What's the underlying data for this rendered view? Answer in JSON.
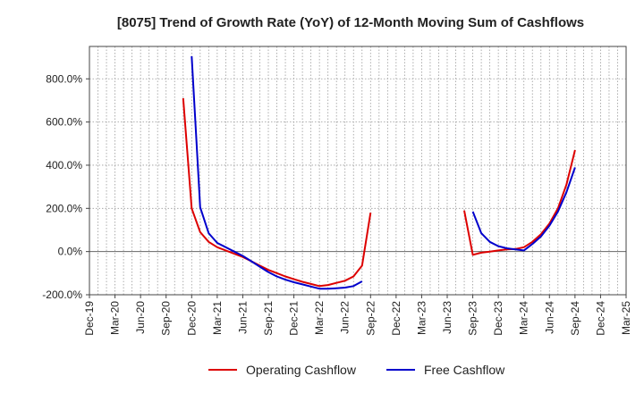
{
  "chart_data": {
    "type": "line",
    "title": "[8075]  Trend of Growth Rate (YoY) of 12-Month Moving Sum of Cashflows",
    "xlabel": "",
    "ylabel": "",
    "ylim": [
      -200,
      950
    ],
    "grid": true,
    "legend_position": "bottom",
    "x_tick_labels": [
      "Dec-19",
      "Mar-20",
      "Jun-20",
      "Sep-20",
      "Dec-20",
      "Mar-21",
      "Jun-21",
      "Sep-21",
      "Dec-21",
      "Mar-22",
      "Jun-22",
      "Sep-22",
      "Dec-22",
      "Mar-23",
      "Jun-23",
      "Sep-23",
      "Dec-23",
      "Mar-24",
      "Jun-24",
      "Sep-24",
      "Dec-24",
      "Mar-25"
    ],
    "y_ticks": [
      {
        "value": 800,
        "label": "800.0%"
      },
      {
        "value": 600,
        "label": "600.0%"
      },
      {
        "value": 400,
        "label": "400.0%"
      },
      {
        "value": 200,
        "label": "200.0%"
      },
      {
        "value": 0,
        "label": "0.0%"
      },
      {
        "value": -200,
        "label": "-200.0%"
      }
    ],
    "series": [
      {
        "name": "Operating Cashflow",
        "color": "#dd0000",
        "segments": [
          [
            {
              "x": "Nov-20",
              "y": 710
            },
            {
              "x": "Dec-20",
              "y": 200
            },
            {
              "x": "Jan-21",
              "y": 90
            },
            {
              "x": "Feb-21",
              "y": 45
            },
            {
              "x": "Mar-21",
              "y": 20
            },
            {
              "x": "Apr-21",
              "y": 5
            },
            {
              "x": "May-21",
              "y": -10
            },
            {
              "x": "Jun-21",
              "y": -25
            },
            {
              "x": "Jul-21",
              "y": -45
            },
            {
              "x": "Aug-21",
              "y": -65
            },
            {
              "x": "Sep-21",
              "y": -85
            },
            {
              "x": "Oct-21",
              "y": -100
            },
            {
              "x": "Nov-21",
              "y": -115
            },
            {
              "x": "Dec-21",
              "y": -128
            },
            {
              "x": "Jan-22",
              "y": -140
            },
            {
              "x": "Feb-22",
              "y": -150
            },
            {
              "x": "Mar-22",
              "y": -160
            },
            {
              "x": "Apr-22",
              "y": -155
            },
            {
              "x": "May-22",
              "y": -145
            },
            {
              "x": "Jun-22",
              "y": -135
            },
            {
              "x": "Jul-22",
              "y": -115
            },
            {
              "x": "Aug-22",
              "y": -65
            },
            {
              "x": "Sep-22",
              "y": 180
            }
          ],
          [
            {
              "x": "Aug-23",
              "y": 190
            },
            {
              "x": "Sep-23",
              "y": -15
            },
            {
              "x": "Oct-23",
              "y": -5
            },
            {
              "x": "Nov-23",
              "y": 0
            },
            {
              "x": "Dec-23",
              "y": 5
            },
            {
              "x": "Jan-24",
              "y": 10
            },
            {
              "x": "Feb-24",
              "y": 12
            },
            {
              "x": "Mar-24",
              "y": 20
            },
            {
              "x": "Apr-24",
              "y": 45
            },
            {
              "x": "May-24",
              "y": 80
            },
            {
              "x": "Jun-24",
              "y": 130
            },
            {
              "x": "Jul-24",
              "y": 200
            },
            {
              "x": "Aug-24",
              "y": 310
            },
            {
              "x": "Sep-24",
              "y": 470
            }
          ]
        ]
      },
      {
        "name": "Free Cashflow",
        "color": "#0000cc",
        "segments": [
          [
            {
              "x": "Dec-20",
              "y": 905
            },
            {
              "x": "Jan-21",
              "y": 205
            },
            {
              "x": "Feb-21",
              "y": 85
            },
            {
              "x": "Mar-21",
              "y": 40
            },
            {
              "x": "Apr-21",
              "y": 20
            },
            {
              "x": "May-21",
              "y": 0
            },
            {
              "x": "Jun-21",
              "y": -20
            },
            {
              "x": "Jul-21",
              "y": -45
            },
            {
              "x": "Aug-21",
              "y": -70
            },
            {
              "x": "Sep-21",
              "y": -95
            },
            {
              "x": "Oct-21",
              "y": -115
            },
            {
              "x": "Nov-21",
              "y": -130
            },
            {
              "x": "Dec-21",
              "y": -142
            },
            {
              "x": "Jan-22",
              "y": -152
            },
            {
              "x": "Feb-22",
              "y": -162
            },
            {
              "x": "Mar-22",
              "y": -172
            },
            {
              "x": "Apr-22",
              "y": -172
            },
            {
              "x": "May-22",
              "y": -170
            },
            {
              "x": "Jun-22",
              "y": -167
            },
            {
              "x": "Jul-22",
              "y": -160
            },
            {
              "x": "Aug-22",
              "y": -138
            }
          ],
          [
            {
              "x": "Sep-23",
              "y": 185
            },
            {
              "x": "Oct-23",
              "y": 85
            },
            {
              "x": "Nov-23",
              "y": 45
            },
            {
              "x": "Dec-23",
              "y": 25
            },
            {
              "x": "Jan-24",
              "y": 15
            },
            {
              "x": "Feb-24",
              "y": 10
            },
            {
              "x": "Mar-24",
              "y": 5
            },
            {
              "x": "Apr-24",
              "y": 35
            },
            {
              "x": "May-24",
              "y": 70
            },
            {
              "x": "Jun-24",
              "y": 120
            },
            {
              "x": "Jul-24",
              "y": 185
            },
            {
              "x": "Aug-24",
              "y": 275
            },
            {
              "x": "Sep-24",
              "y": 390
            }
          ]
        ]
      }
    ]
  }
}
